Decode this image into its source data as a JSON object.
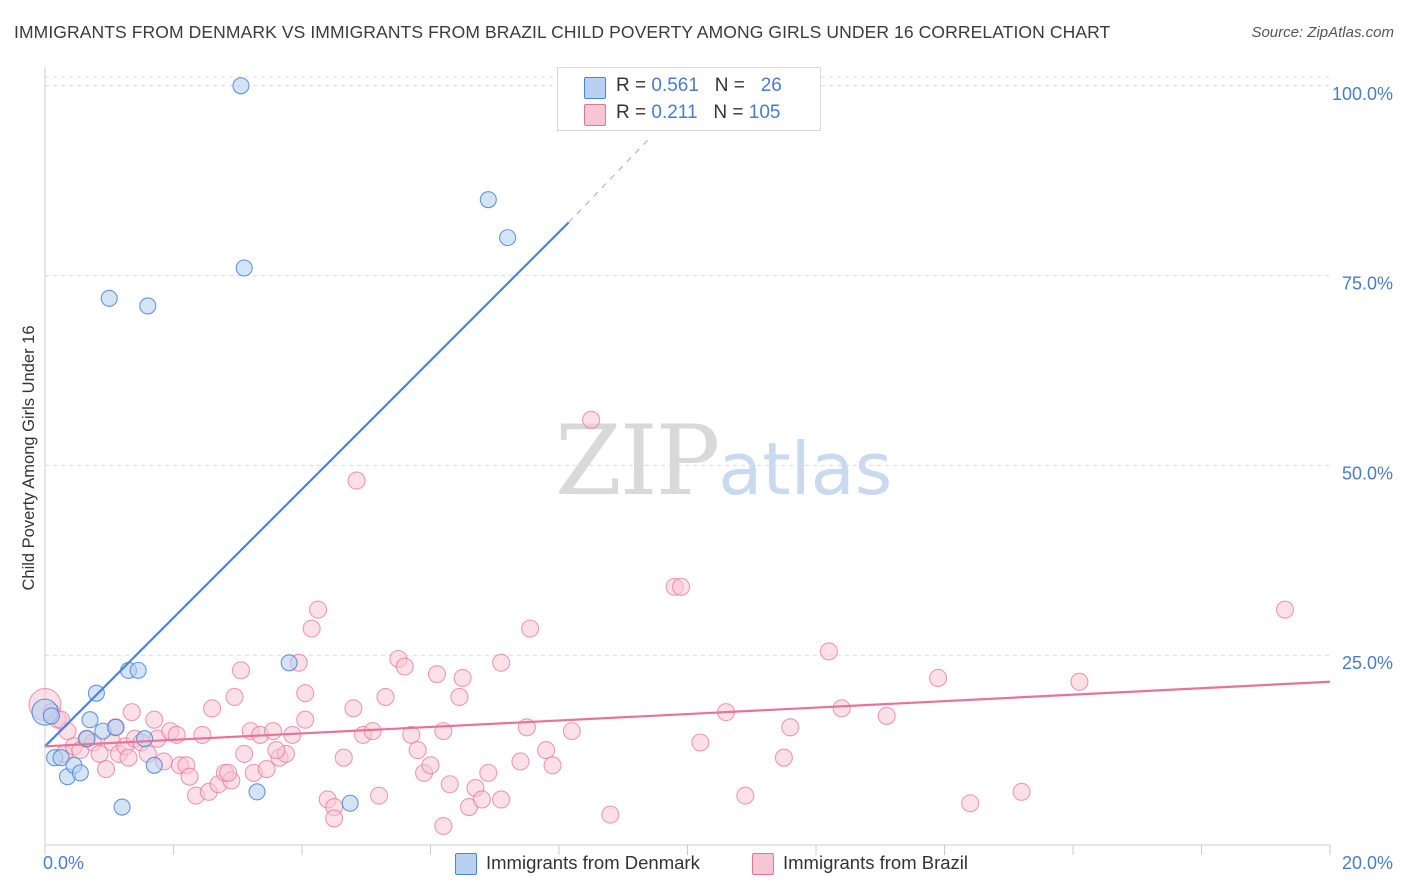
{
  "title": "IMMIGRANTS FROM DENMARK VS IMMIGRANTS FROM BRAZIL CHILD POVERTY AMONG GIRLS UNDER 16 CORRELATION CHART",
  "source": "Source: ZipAtlas.com",
  "watermark": {
    "zip": "ZIP",
    "atlas": "atlas"
  },
  "legend": {
    "rows": [
      {
        "r_label": "R =",
        "r_value": "0.561",
        "n_label": "N =",
        "n_value": "26",
        "color": "#a9c7ee"
      },
      {
        "r_label": "R =",
        "r_value": "0.211",
        "n_label": "N =",
        "n_value": "105",
        "color": "#f6bccd"
      }
    ]
  },
  "bottom_legend": [
    "Immigrants from Denmark",
    "Immigrants from Brazil"
  ],
  "chart_data": {
    "type": "scatter",
    "title": "IMMIGRANTS FROM DENMARK VS IMMIGRANTS FROM BRAZIL CHILD POVERTY AMONG GIRLS UNDER 16 CORRELATION CHART",
    "xlabel": "",
    "ylabel": "Child Poverty Among Girls Under 16",
    "xlim": [
      0,
      20
    ],
    "ylim": [
      0,
      103
    ],
    "x_tick_labels": [
      "0.0%",
      "20.0%"
    ],
    "y_tick_values": [
      25,
      50,
      75,
      100
    ],
    "y_tick_labels": [
      "25.0%",
      "50.0%",
      "75.0%",
      "100.0%"
    ],
    "grid": "horizontal dashed",
    "legend_position": "top-center",
    "colors": {
      "denmark": "#4a86d8",
      "brazil": "#e8729a",
      "denmark_fill": "#b8d1f0",
      "brazil_fill": "#f7c6d5"
    },
    "series": [
      {
        "name": "Immigrants from Denmark",
        "points": [
          [
            0.0,
            17.5
          ],
          [
            0.15,
            11.5
          ],
          [
            0.25,
            11.5
          ],
          [
            0.35,
            9.0
          ],
          [
            0.45,
            10.5
          ],
          [
            0.55,
            9.5
          ],
          [
            0.65,
            14.0
          ],
          [
            0.7,
            16.5
          ],
          [
            0.8,
            20.0
          ],
          [
            0.9,
            15.0
          ],
          [
            1.0,
            72.0
          ],
          [
            1.1,
            15.5
          ],
          [
            1.2,
            5.0
          ],
          [
            1.3,
            23.0
          ],
          [
            1.45,
            23.0
          ],
          [
            1.55,
            14.0
          ],
          [
            1.6,
            71.0
          ],
          [
            1.7,
            10.5
          ],
          [
            3.05,
            100.0
          ],
          [
            3.1,
            76.0
          ],
          [
            3.3,
            7.0
          ],
          [
            3.8,
            24.0
          ],
          [
            4.75,
            5.5
          ],
          [
            6.9,
            85.0
          ],
          [
            7.2,
            80.0
          ],
          [
            0.1,
            17.0
          ]
        ],
        "trend": {
          "x": [
            0.0,
            8.15
          ],
          "y": [
            13.0,
            82.0
          ],
          "dashed_to": [
            9.4,
            93.0
          ]
        }
      },
      {
        "name": "Immigrants from Brazil",
        "points": [
          [
            0.0,
            18.5
          ],
          [
            0.1,
            17.5
          ],
          [
            0.2,
            16.5
          ],
          [
            0.3,
            12.0
          ],
          [
            0.35,
            15.0
          ],
          [
            0.45,
            13.0
          ],
          [
            0.55,
            12.5
          ],
          [
            0.65,
            14.0
          ],
          [
            0.75,
            13.5
          ],
          [
            0.85,
            12.0
          ],
          [
            0.95,
            10.0
          ],
          [
            1.05,
            13.5
          ],
          [
            1.1,
            15.5
          ],
          [
            1.15,
            12.0
          ],
          [
            1.25,
            13.0
          ],
          [
            1.35,
            17.5
          ],
          [
            1.4,
            14.0
          ],
          [
            1.5,
            13.5
          ],
          [
            1.6,
            12.0
          ],
          [
            1.7,
            16.5
          ],
          [
            1.75,
            14.0
          ],
          [
            1.85,
            11.0
          ],
          [
            1.95,
            15.0
          ],
          [
            2.05,
            14.5
          ],
          [
            2.1,
            10.5
          ],
          [
            2.2,
            10.5
          ],
          [
            2.25,
            9.0
          ],
          [
            2.35,
            6.5
          ],
          [
            2.45,
            14.5
          ],
          [
            2.55,
            7.0
          ],
          [
            2.6,
            18.0
          ],
          [
            2.7,
            8.0
          ],
          [
            2.8,
            9.5
          ],
          [
            2.9,
            8.5
          ],
          [
            2.95,
            19.5
          ],
          [
            3.05,
            23.0
          ],
          [
            3.1,
            12.0
          ],
          [
            3.2,
            15.0
          ],
          [
            3.25,
            9.5
          ],
          [
            3.35,
            14.5
          ],
          [
            3.45,
            10.0
          ],
          [
            3.55,
            15.0
          ],
          [
            3.65,
            11.5
          ],
          [
            3.75,
            12.0
          ],
          [
            3.85,
            14.5
          ],
          [
            3.95,
            24.0
          ],
          [
            4.05,
            20.0
          ],
          [
            4.05,
            16.5
          ],
          [
            4.15,
            28.5
          ],
          [
            4.25,
            31.0
          ],
          [
            4.4,
            6.0
          ],
          [
            4.5,
            5.0
          ],
          [
            4.65,
            11.5
          ],
          [
            4.8,
            18.0
          ],
          [
            4.85,
            48.0
          ],
          [
            4.95,
            14.5
          ],
          [
            5.1,
            15.0
          ],
          [
            5.2,
            6.5
          ],
          [
            5.3,
            19.5
          ],
          [
            5.5,
            24.5
          ],
          [
            5.6,
            23.5
          ],
          [
            5.7,
            14.5
          ],
          [
            5.8,
            12.5
          ],
          [
            5.9,
            9.5
          ],
          [
            6.0,
            10.5
          ],
          [
            6.1,
            22.5
          ],
          [
            6.2,
            15.0
          ],
          [
            6.3,
            8.0
          ],
          [
            6.45,
            19.5
          ],
          [
            6.5,
            22.0
          ],
          [
            6.6,
            5.0
          ],
          [
            6.7,
            7.5
          ],
          [
            6.8,
            6.0
          ],
          [
            6.9,
            9.5
          ],
          [
            7.1,
            24.0
          ],
          [
            7.4,
            11.0
          ],
          [
            7.5,
            15.5
          ],
          [
            7.55,
            28.5
          ],
          [
            7.8,
            12.5
          ],
          [
            7.9,
            10.5
          ],
          [
            8.2,
            15.0
          ],
          [
            8.5,
            56.0
          ],
          [
            8.8,
            4.0
          ],
          [
            9.8,
            34.0
          ],
          [
            9.9,
            34.0
          ],
          [
            10.2,
            13.5
          ],
          [
            10.6,
            17.5
          ],
          [
            10.9,
            6.5
          ],
          [
            11.5,
            11.5
          ],
          [
            11.6,
            15.5
          ],
          [
            12.2,
            25.5
          ],
          [
            12.4,
            18.0
          ],
          [
            13.1,
            17.0
          ],
          [
            13.9,
            22.0
          ],
          [
            14.4,
            5.5
          ],
          [
            15.2,
            7.0
          ],
          [
            16.1,
            21.5
          ],
          [
            19.3,
            31.0
          ],
          [
            6.2,
            2.5
          ],
          [
            7.1,
            6.0
          ],
          [
            4.5,
            3.5
          ],
          [
            3.6,
            12.5
          ],
          [
            2.85,
            9.5
          ],
          [
            1.3,
            11.5
          ],
          [
            0.25,
            16.5
          ]
        ],
        "trend": {
          "x": [
            0.0,
            20.0
          ],
          "y": [
            13.0,
            21.5
          ]
        }
      }
    ]
  }
}
